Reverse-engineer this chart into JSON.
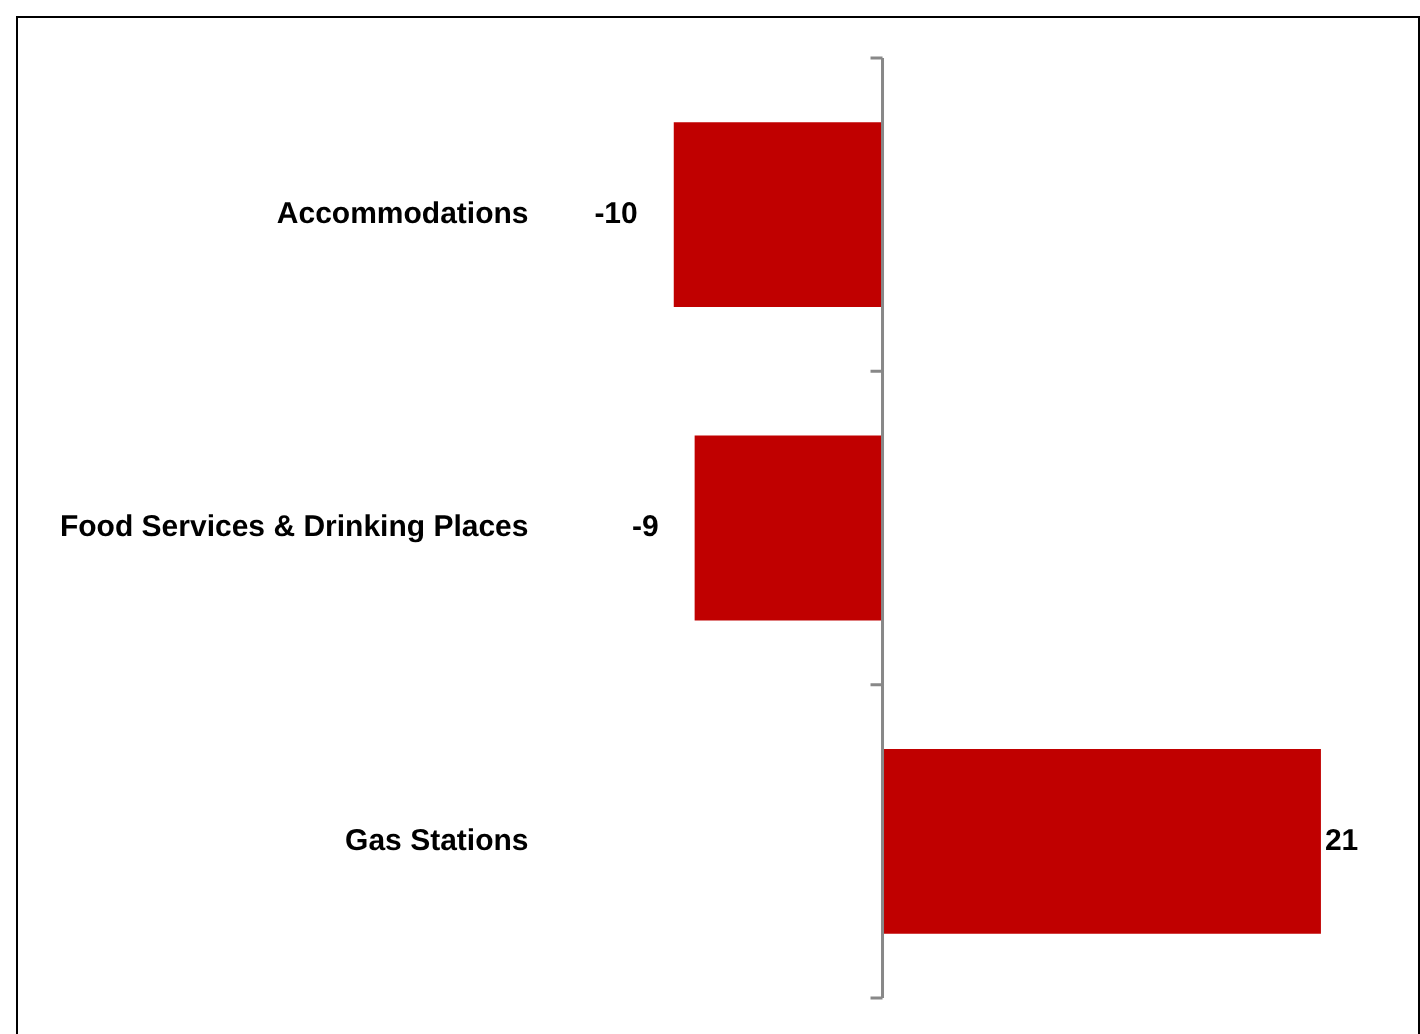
{
  "chart_data": {
    "type": "bar",
    "orientation": "horizontal",
    "categories": [
      "Accommodations",
      "Food Services & Drinking Places",
      "Gas Stations"
    ],
    "values": [
      -10,
      -9,
      21
    ],
    "color": "#c00000",
    "data_labels": true,
    "legend": false
  }
}
